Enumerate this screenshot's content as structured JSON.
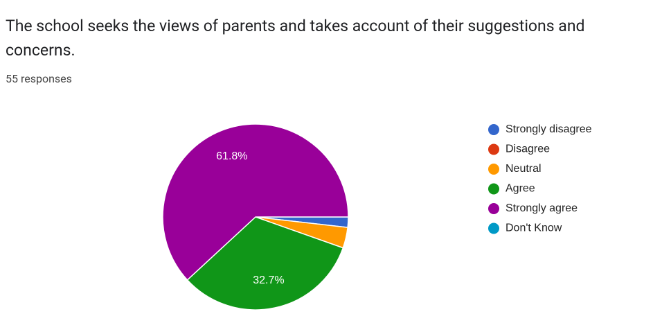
{
  "chart_data": {
    "type": "pie",
    "title": "The school seeks the views of parents and takes account of their suggestions and concerns.",
    "subtitle": "55 responses",
    "categories": [
      "Strongly disagree",
      "Disagree",
      "Neutral",
      "Agree",
      "Strongly agree",
      "Don't Know"
    ],
    "values": [
      1.8,
      0,
      3.6,
      32.7,
      61.8,
      0
    ],
    "value_labels": [
      null,
      null,
      null,
      "32.7%",
      "61.8%",
      null
    ],
    "colors": [
      "#3366cc",
      "#dc3912",
      "#ff9900",
      "#109618",
      "#990099",
      "#0099c6"
    ],
    "legend": "right"
  }
}
